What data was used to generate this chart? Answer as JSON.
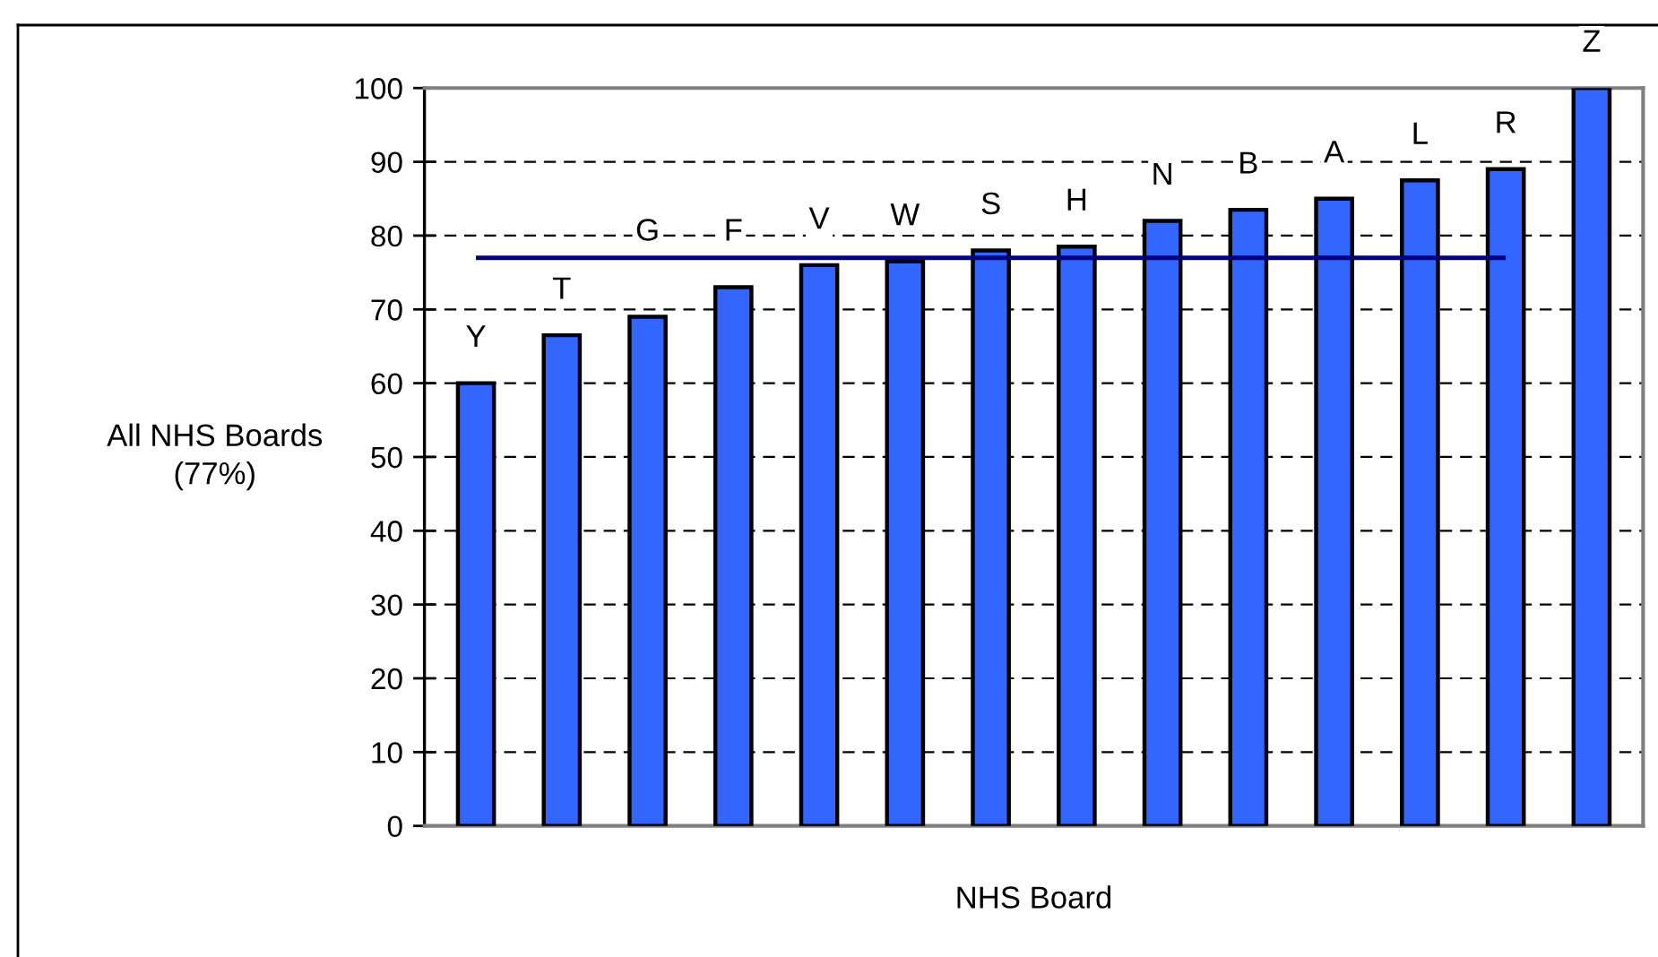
{
  "chart_data": {
    "type": "bar",
    "categories": [
      "Y",
      "T",
      "G",
      "F",
      "V",
      "W",
      "S",
      "H",
      "N",
      "B",
      "A",
      "L",
      "R",
      "Z"
    ],
    "series": [
      {
        "color": "#3366ff",
        "values": [
          60,
          66.5,
          69,
          73,
          76,
          76.5,
          78,
          78.5,
          82,
          83.5,
          85,
          87.5,
          89,
          100
        ]
      },
      {
        "type": "line",
        "color": "#000080",
        "values": [
          77,
          77,
          77,
          77,
          77,
          77,
          77,
          77,
          77,
          77,
          77,
          77,
          77,
          null
        ]
      }
    ],
    "xlabel": "NHS Board",
    "ylabel": "All NHS Boards\n(77%)",
    "ylim": [
      0,
      100
    ],
    "yticks": [
      0,
      10,
      20,
      30,
      40,
      50,
      60,
      70,
      80,
      90,
      100
    ],
    "grid": "y",
    "line_style": "solid"
  }
}
